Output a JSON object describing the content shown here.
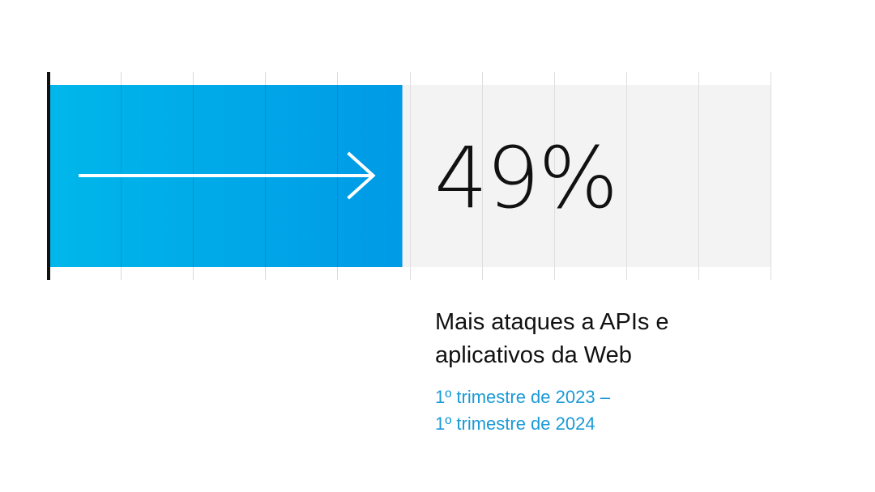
{
  "chart_data": {
    "type": "bar",
    "orientation": "horizontal",
    "value": 49,
    "unit": "%",
    "xlim": [
      0,
      100
    ],
    "grid": true,
    "label": "49%"
  },
  "caption": {
    "title_line1": "Mais ataques a APIs e",
    "title_line2": "aplicativos da Web",
    "period_line1": "1º trimestre de 2023 –",
    "period_line2": "1º trimestre de 2024"
  },
  "colors": {
    "bar_start": "#00b7ea",
    "bar_end": "#009ae6",
    "track": "#f3f3f3",
    "grid": "#dedede",
    "axis": "#111111",
    "arrow": "#ffffff",
    "period_text": "#1a9ad6"
  },
  "icons": {
    "arrow": "arrow-right-icon"
  }
}
